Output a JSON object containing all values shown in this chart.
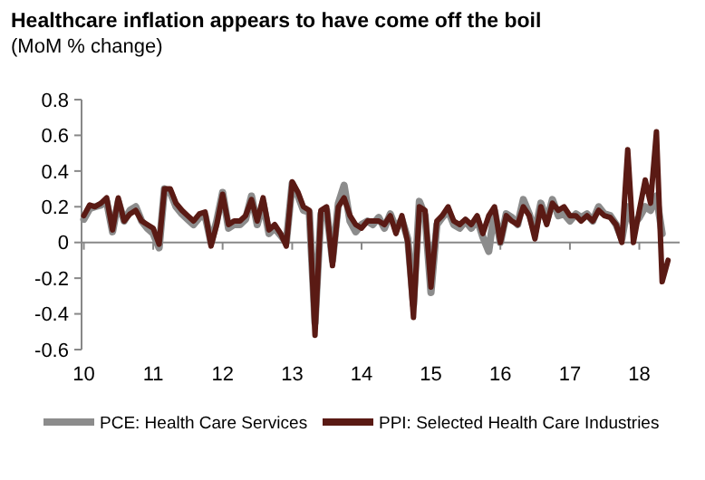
{
  "chart_data": {
    "type": "line",
    "title": "Healthcare inflation appears to have come off the boil",
    "subtitle": "(MoM % change)",
    "x": [
      "2010-01",
      "2010-02",
      "2010-03",
      "2010-04",
      "2010-05",
      "2010-06",
      "2010-07",
      "2010-08",
      "2010-09",
      "2010-10",
      "2010-11",
      "2010-12",
      "2011-01",
      "2011-02",
      "2011-03",
      "2011-04",
      "2011-05",
      "2011-06",
      "2011-07",
      "2011-08",
      "2011-09",
      "2011-10",
      "2011-11",
      "2011-12",
      "2012-01",
      "2012-02",
      "2012-03",
      "2012-04",
      "2012-05",
      "2012-06",
      "2012-07",
      "2012-08",
      "2012-09",
      "2012-10",
      "2012-11",
      "2012-12",
      "2013-01",
      "2013-02",
      "2013-03",
      "2013-04",
      "2013-05",
      "2013-06",
      "2013-07",
      "2013-08",
      "2013-09",
      "2013-10",
      "2013-11",
      "2013-12",
      "2014-01",
      "2014-02",
      "2014-03",
      "2014-04",
      "2014-05",
      "2014-06",
      "2014-07",
      "2014-08",
      "2014-09",
      "2014-10",
      "2014-11",
      "2014-12",
      "2015-01",
      "2015-02",
      "2015-03",
      "2015-04",
      "2015-05",
      "2015-06",
      "2015-07",
      "2015-08",
      "2015-09",
      "2015-10",
      "2015-11",
      "2015-12",
      "2016-01",
      "2016-02",
      "2016-03",
      "2016-04",
      "2016-05",
      "2016-06",
      "2016-07",
      "2016-08",
      "2016-09",
      "2016-10",
      "2016-11",
      "2016-12",
      "2017-01",
      "2017-02",
      "2017-03",
      "2017-04",
      "2017-05",
      "2017-06",
      "2017-07",
      "2017-08",
      "2017-09",
      "2017-10",
      "2017-11",
      "2017-12",
      "2018-01",
      "2018-02",
      "2018-03",
      "2018-04",
      "2018-05",
      "2018-06"
    ],
    "series": [
      {
        "name": "PCE: Health Care Services",
        "color": "#8c8c8c",
        "values": [
          0.13,
          0.19,
          0.2,
          0.21,
          0.23,
          0.06,
          0.23,
          0.12,
          0.18,
          0.2,
          0.12,
          0.08,
          0.05,
          -0.03,
          0.3,
          0.28,
          0.2,
          0.16,
          0.13,
          0.1,
          0.14,
          0.15,
          0.0,
          0.12,
          0.28,
          0.08,
          0.1,
          0.1,
          0.13,
          0.26,
          0.1,
          0.22,
          0.05,
          0.08,
          0.04,
          0.0,
          0.33,
          0.26,
          0.18,
          0.17,
          -0.45,
          0.16,
          0.18,
          -0.1,
          0.22,
          0.32,
          0.12,
          0.06,
          0.1,
          0.12,
          0.1,
          0.14,
          0.08,
          0.16,
          0.08,
          0.13,
          0.02,
          -0.35,
          0.23,
          0.15,
          -0.28,
          0.1,
          0.14,
          0.18,
          0.1,
          0.08,
          0.12,
          0.08,
          0.13,
          0.03,
          -0.05,
          0.18,
          0.0,
          0.16,
          0.14,
          0.1,
          0.24,
          0.16,
          0.06,
          0.22,
          0.12,
          0.24,
          0.15,
          0.16,
          0.12,
          0.16,
          0.14,
          0.16,
          0.12,
          0.2,
          0.16,
          0.15,
          0.1,
          0.02,
          0.2,
          0.1,
          0.14,
          0.2,
          0.18,
          0.26,
          0.05,
          null
        ]
      },
      {
        "name": "PPI: Selected Health Care Industries",
        "color": "#5a1a14",
        "values": [
          0.15,
          0.21,
          0.2,
          0.22,
          0.25,
          0.07,
          0.25,
          0.12,
          0.16,
          0.18,
          0.12,
          0.1,
          0.08,
          -0.01,
          0.3,
          0.3,
          0.22,
          0.18,
          0.15,
          0.12,
          0.16,
          0.17,
          -0.02,
          0.1,
          0.27,
          0.1,
          0.12,
          0.12,
          0.15,
          0.24,
          0.12,
          0.25,
          0.07,
          0.1,
          0.05,
          -0.02,
          0.34,
          0.28,
          0.2,
          0.18,
          -0.52,
          0.18,
          0.2,
          -0.13,
          0.2,
          0.25,
          0.15,
          0.1,
          0.08,
          0.12,
          0.12,
          0.12,
          0.1,
          0.15,
          0.05,
          0.15,
          0.0,
          -0.42,
          0.2,
          0.18,
          -0.25,
          0.12,
          0.15,
          0.2,
          0.12,
          0.1,
          0.13,
          0.1,
          0.15,
          0.05,
          0.15,
          0.2,
          0.0,
          0.15,
          0.12,
          0.1,
          0.2,
          0.15,
          0.02,
          0.2,
          0.1,
          0.22,
          0.18,
          0.2,
          0.15,
          0.15,
          0.12,
          0.15,
          0.12,
          0.18,
          0.15,
          0.14,
          0.1,
          0.0,
          0.52,
          0.0,
          0.18,
          0.35,
          0.22,
          0.62,
          -0.22,
          -0.1
        ]
      }
    ],
    "xlim": [
      "2009-12-20",
      "2018-08"
    ],
    "xticks": [
      {
        "value": "2010",
        "label": "10"
      },
      {
        "value": "2011",
        "label": "11"
      },
      {
        "value": "2012",
        "label": "12"
      },
      {
        "value": "2013",
        "label": "13"
      },
      {
        "value": "2014",
        "label": "14"
      },
      {
        "value": "2015",
        "label": "15"
      },
      {
        "value": "2016",
        "label": "16"
      },
      {
        "value": "2017",
        "label": "17"
      },
      {
        "value": "2018",
        "label": "18"
      }
    ],
    "ylim": [
      -0.6,
      0.8
    ],
    "yticks": [
      -0.6,
      -0.4,
      -0.2,
      0,
      0.2,
      0.4,
      0.6,
      0.8
    ],
    "legend": "bottom",
    "line_style": "solid",
    "marker": "none"
  }
}
